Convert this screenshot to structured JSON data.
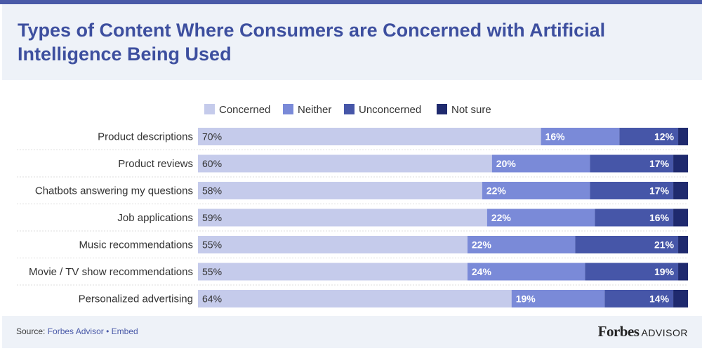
{
  "title": "Types of Content Where Consumers are Concerned with Artificial Intelligence Being Used",
  "footer": {
    "source_label": "Source:",
    "source_name": "Forbes Advisor",
    "separator": "•",
    "embed_label": "Embed",
    "brand_name": "Forbes",
    "brand_suffix": "ADVISOR"
  },
  "colors": {
    "concerned": "#c5cbeb",
    "neither": "#7a8ad8",
    "unconcerned": "#4656a8",
    "not_sure": "#1f2a6e"
  },
  "chart_data": {
    "type": "bar",
    "orientation": "horizontal",
    "stacked": true,
    "title": "Types of Content Where Consumers are Concerned with Artificial Intelligence Being Used",
    "legend_position": "top",
    "categories": [
      "Product descriptions",
      "Product reviews",
      "Chatbots answering my questions",
      "Job applications",
      "Music recommendations",
      "Movie / TV show recommendations",
      "Personalized advertising"
    ],
    "series": [
      {
        "name": "Concerned",
        "values": [
          70,
          60,
          58,
          59,
          55,
          55,
          64
        ],
        "labels": [
          "70%",
          "60%",
          "58%",
          "59%",
          "55%",
          "55%",
          "64%"
        ]
      },
      {
        "name": "Neither",
        "values": [
          16,
          20,
          22,
          22,
          22,
          24,
          19
        ],
        "labels": [
          "16%",
          "20%",
          "22%",
          "22%",
          "22%",
          "24%",
          "19%"
        ]
      },
      {
        "name": "Unconcerned",
        "values": [
          12,
          17,
          17,
          16,
          21,
          19,
          14
        ],
        "labels": [
          "12%",
          "17%",
          "17%",
          "16%",
          "21%",
          "19%",
          "14%"
        ]
      },
      {
        "name": "Not sure",
        "values": [
          2,
          3,
          3,
          3,
          2,
          2,
          3
        ],
        "labels": [
          "",
          "",
          "",
          "",
          "",
          "",
          ""
        ]
      }
    ]
  }
}
